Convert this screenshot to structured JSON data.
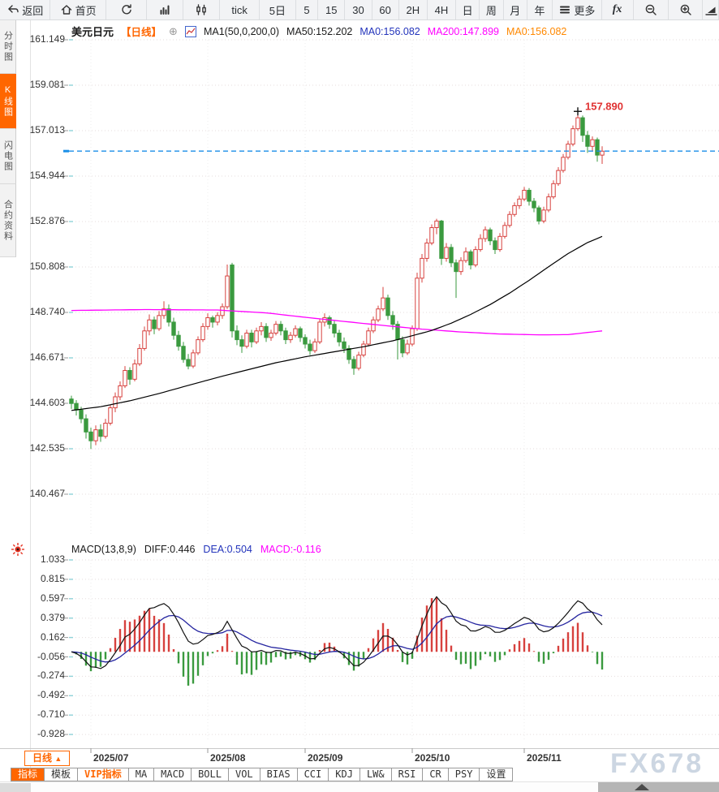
{
  "toolbar": {
    "items": [
      {
        "name": "back-button",
        "icon": "back",
        "label": "返回"
      },
      {
        "name": "home-button",
        "icon": "home",
        "label": "首页"
      },
      {
        "name": "refresh-button",
        "icon": "refresh",
        "label": ""
      },
      {
        "name": "chart-type-bar-button",
        "icon": "barchart",
        "label": ""
      },
      {
        "name": "chart-type-candle-button",
        "icon": "candles",
        "label": ""
      },
      {
        "name": "period-tick",
        "icon": "",
        "label": "tick"
      },
      {
        "name": "period-5d",
        "icon": "",
        "label": "5日"
      },
      {
        "name": "period-5",
        "icon": "",
        "label": "5"
      },
      {
        "name": "period-15",
        "icon": "",
        "label": "15"
      },
      {
        "name": "period-30",
        "icon": "",
        "label": "30"
      },
      {
        "name": "period-60",
        "icon": "",
        "label": "60"
      },
      {
        "name": "period-2h",
        "icon": "",
        "label": "2H"
      },
      {
        "name": "period-4h",
        "icon": "",
        "label": "4H"
      },
      {
        "name": "period-day",
        "icon": "",
        "label": "日"
      },
      {
        "name": "period-week",
        "icon": "",
        "label": "周"
      },
      {
        "name": "period-month",
        "icon": "",
        "label": "月"
      },
      {
        "name": "period-year",
        "icon": "",
        "label": "年"
      },
      {
        "name": "more-button",
        "icon": "menu",
        "label": "更多"
      },
      {
        "name": "indicators-fx-button",
        "icon": "fx",
        "label": "fx"
      },
      {
        "name": "zoom-out-button",
        "icon": "zoomout",
        "label": ""
      },
      {
        "name": "zoom-in-button",
        "icon": "zoomin",
        "label": ""
      },
      {
        "name": "draw-tool-button",
        "icon": "draw",
        "label": ""
      }
    ]
  },
  "sidebar": {
    "tabs": [
      {
        "label": "分时图",
        "active": false
      },
      {
        "label": "K线图",
        "active": true
      },
      {
        "label": "闪电图",
        "active": false
      },
      {
        "label": "合约资料",
        "active": false
      }
    ]
  },
  "chart_header": {
    "symbol": "美元日元",
    "period_tag": "【日线】",
    "circle_plus": "⊕",
    "ma_param": "MA1(50,0,200,0)",
    "ma50": "MA50:152.202",
    "ma0_blue": "MA0:156.082",
    "ma200": "MA200:147.899",
    "ma0_orange": "MA0:156.082"
  },
  "macd_header": {
    "title": "MACD(13,8,9)",
    "diff": "DIFF:0.446",
    "dea": "DEA:0.504",
    "macd": "MACD:-0.116"
  },
  "price_axis": [
    "161.149",
    "159.081",
    "157.013",
    "154.944",
    "152.876",
    "150.808",
    "148.740",
    "146.671",
    "144.603",
    "142.535",
    "140.467"
  ],
  "macd_axis": [
    "1.033",
    "0.815",
    "0.597",
    "0.379",
    "0.162",
    "-0.056",
    "-0.274",
    "-0.492",
    "-0.710",
    "-0.928"
  ],
  "x_axis": {
    "labels": [
      {
        "label": "2025/07",
        "i": 4
      },
      {
        "label": "2025/08",
        "i": 28
      },
      {
        "label": "2025/09",
        "i": 48
      },
      {
        "label": "2025/10",
        "i": 70
      },
      {
        "label": "2025/11",
        "i": 93
      }
    ]
  },
  "period_button": {
    "label": "日线",
    "arrow": "▲"
  },
  "bottom_tabs": [
    {
      "label": "指标",
      "state": "active"
    },
    {
      "label": "模板",
      "state": ""
    },
    {
      "label": "VIP指标",
      "state": "vip"
    },
    {
      "label": "MA",
      "state": ""
    },
    {
      "label": "MACD",
      "state": ""
    },
    {
      "label": "BOLL",
      "state": ""
    },
    {
      "label": "VOL",
      "state": ""
    },
    {
      "label": "BIAS",
      "state": ""
    },
    {
      "label": "CCI",
      "state": ""
    },
    {
      "label": "KDJ",
      "state": ""
    },
    {
      "label": "LW&",
      "state": ""
    },
    {
      "label": "RSI",
      "state": ""
    },
    {
      "label": "CR",
      "state": ""
    },
    {
      "label": "PSY",
      "state": ""
    },
    {
      "label": "设置",
      "state": ""
    }
  ],
  "watermark": "FX678",
  "colors": {
    "accent_orange": "#ff6600",
    "up": "#d7413e",
    "down": "#3a9a3f",
    "ma50": "#000000",
    "ma200": "#ff00ff",
    "diff_line": "#111111",
    "dea_line": "#2525a0",
    "current_price_line": "#1b8fe8",
    "high_label": "#e03333",
    "grid": "#e5dddd",
    "watermark": "#ccd6e2"
  },
  "chart_data": {
    "type": "candlestick",
    "symbol": "美元日元 (USD/JPY) 日线",
    "high_marker": {
      "value": 157.89,
      "label": "157.890"
    },
    "current_price": 156.082,
    "price_ticks": [
      161.149,
      159.081,
      157.013,
      154.944,
      152.876,
      150.808,
      148.74,
      146.671,
      144.603,
      142.535,
      140.467
    ],
    "macd_ticks": [
      1.033,
      0.815,
      0.597,
      0.379,
      0.162,
      -0.056,
      -0.274,
      -0.492,
      -0.71,
      -0.928
    ],
    "months": [
      {
        "label": "2025/07",
        "i": 4
      },
      {
        "label": "2025/08",
        "i": 28
      },
      {
        "label": "2025/09",
        "i": 48
      },
      {
        "label": "2025/10",
        "i": 70
      },
      {
        "label": "2025/11",
        "i": 93
      }
    ],
    "macd": {
      "fast": 8,
      "slow": 13,
      "signal": 9,
      "scale": 0.75,
      "diff": 0.446,
      "dea": 0.504,
      "hist": -0.116
    },
    "ma50_anchors": [
      [
        0,
        144.28
      ],
      [
        6,
        144.45
      ],
      [
        12,
        144.72
      ],
      [
        18,
        145.05
      ],
      [
        24,
        145.42
      ],
      [
        30,
        145.78
      ],
      [
        36,
        146.12
      ],
      [
        42,
        146.45
      ],
      [
        48,
        146.72
      ],
      [
        54,
        146.95
      ],
      [
        60,
        147.18
      ],
      [
        66,
        147.45
      ],
      [
        70,
        147.68
      ],
      [
        74,
        147.92
      ],
      [
        78,
        148.25
      ],
      [
        82,
        148.65
      ],
      [
        86,
        149.1
      ],
      [
        90,
        149.62
      ],
      [
        94,
        150.2
      ],
      [
        98,
        150.82
      ],
      [
        102,
        151.42
      ],
      [
        106,
        151.92
      ],
      [
        109,
        152.2
      ]
    ],
    "ma200_anchors": [
      [
        0,
        148.83
      ],
      [
        15,
        148.87
      ],
      [
        30,
        148.85
      ],
      [
        40,
        148.72
      ],
      [
        48,
        148.52
      ],
      [
        56,
        148.33
      ],
      [
        64,
        148.15
      ],
      [
        72,
        147.98
      ],
      [
        80,
        147.85
      ],
      [
        88,
        147.76
      ],
      [
        96,
        147.72
      ],
      [
        102,
        147.73
      ],
      [
        109,
        147.9
      ]
    ],
    "candles": [
      [
        144.8,
        144.95,
        144.35,
        144.6
      ],
      [
        144.6,
        144.75,
        144.05,
        144.3
      ],
      [
        144.3,
        144.45,
        143.7,
        143.9
      ],
      [
        143.9,
        144.1,
        143.0,
        143.3
      ],
      [
        143.3,
        143.5,
        142.53,
        142.9
      ],
      [
        142.9,
        143.6,
        142.7,
        143.4
      ],
      [
        143.4,
        143.65,
        142.85,
        143.1
      ],
      [
        143.1,
        143.9,
        143.0,
        143.7
      ],
      [
        143.7,
        144.55,
        143.6,
        144.4
      ],
      [
        144.4,
        145.1,
        144.2,
        144.9
      ],
      [
        144.9,
        145.6,
        144.75,
        145.4
      ],
      [
        145.4,
        146.3,
        145.3,
        146.1
      ],
      [
        146.1,
        146.25,
        145.45,
        145.7
      ],
      [
        145.7,
        146.6,
        145.6,
        146.4
      ],
      [
        146.4,
        147.3,
        146.3,
        147.1
      ],
      [
        147.1,
        148.1,
        147.0,
        147.9
      ],
      [
        147.9,
        148.65,
        147.7,
        148.4
      ],
      [
        148.4,
        148.55,
        147.75,
        148.0
      ],
      [
        148.0,
        148.8,
        147.9,
        148.6
      ],
      [
        148.6,
        149.25,
        148.45,
        148.9
      ],
      [
        148.9,
        149.1,
        148.1,
        148.3
      ],
      [
        148.3,
        148.5,
        147.5,
        147.7
      ],
      [
        147.7,
        147.9,
        147.0,
        147.2
      ],
      [
        147.2,
        147.4,
        146.45,
        146.6
      ],
      [
        146.6,
        146.85,
        146.15,
        146.3
      ],
      [
        146.3,
        147.05,
        146.2,
        146.9
      ],
      [
        146.9,
        147.65,
        146.8,
        147.5
      ],
      [
        147.5,
        148.25,
        147.4,
        148.1
      ],
      [
        148.1,
        148.7,
        147.95,
        148.5
      ],
      [
        148.5,
        148.6,
        148.05,
        148.3
      ],
      [
        148.3,
        148.75,
        148.15,
        148.6
      ],
      [
        148.6,
        149.15,
        148.45,
        149.0
      ],
      [
        149.0,
        150.92,
        148.9,
        150.4
      ],
      [
        150.9,
        151.0,
        147.6,
        147.9
      ],
      [
        147.9,
        148.15,
        147.25,
        147.5
      ],
      [
        147.5,
        147.7,
        146.9,
        147.2
      ],
      [
        147.2,
        147.95,
        147.1,
        147.8
      ],
      [
        147.8,
        147.95,
        147.15,
        147.4
      ],
      [
        147.4,
        148.05,
        147.3,
        147.9
      ],
      [
        147.9,
        148.3,
        147.7,
        148.1
      ],
      [
        148.1,
        148.25,
        147.4,
        147.6
      ],
      [
        147.6,
        147.95,
        147.45,
        147.8
      ],
      [
        147.8,
        148.35,
        147.7,
        148.2
      ],
      [
        148.2,
        148.35,
        147.7,
        147.9
      ],
      [
        147.9,
        148.05,
        147.3,
        147.5
      ],
      [
        147.5,
        147.85,
        147.35,
        147.7
      ],
      [
        147.7,
        148.15,
        147.6,
        148.0
      ],
      [
        148.0,
        148.1,
        147.4,
        147.6
      ],
      [
        147.6,
        147.75,
        147.1,
        147.3
      ],
      [
        147.3,
        147.5,
        146.8,
        147.0
      ],
      [
        147.0,
        147.55,
        146.9,
        147.4
      ],
      [
        147.4,
        148.45,
        147.3,
        148.3
      ],
      [
        148.3,
        148.7,
        148.1,
        148.5
      ],
      [
        148.5,
        148.6,
        148.0,
        148.2
      ],
      [
        148.2,
        148.35,
        147.6,
        147.8
      ],
      [
        147.8,
        147.95,
        147.2,
        147.4
      ],
      [
        147.4,
        147.6,
        146.9,
        147.1
      ],
      [
        147.1,
        147.25,
        146.4,
        146.6
      ],
      [
        146.6,
        146.75,
        145.9,
        146.2
      ],
      [
        146.2,
        146.95,
        146.1,
        146.8
      ],
      [
        146.8,
        147.45,
        146.7,
        147.3
      ],
      [
        147.3,
        148.05,
        147.2,
        147.9
      ],
      [
        147.9,
        148.55,
        147.8,
        148.4
      ],
      [
        148.4,
        149.05,
        148.3,
        148.9
      ],
      [
        148.9,
        149.9,
        148.8,
        149.4
      ],
      [
        149.4,
        149.55,
        148.4,
        148.6
      ],
      [
        148.6,
        148.8,
        147.95,
        148.2
      ],
      [
        148.2,
        148.35,
        146.6,
        147.5
      ],
      [
        147.5,
        147.65,
        146.7,
        146.9
      ],
      [
        146.9,
        147.5,
        146.8,
        147.3
      ],
      [
        147.3,
        148.15,
        147.2,
        148.0
      ],
      [
        148.0,
        150.55,
        147.9,
        150.3
      ],
      [
        150.3,
        151.4,
        150.1,
        151.2
      ],
      [
        151.2,
        152.1,
        151.05,
        151.9
      ],
      [
        151.9,
        152.75,
        151.8,
        152.6
      ],
      [
        152.6,
        153.0,
        152.3,
        152.9
      ],
      [
        152.9,
        152.95,
        150.9,
        151.2
      ],
      [
        151.2,
        151.9,
        151.05,
        151.7
      ],
      [
        151.7,
        151.85,
        150.8,
        151.0
      ],
      [
        151.0,
        151.15,
        149.4,
        150.6
      ],
      [
        150.6,
        151.25,
        150.45,
        151.1
      ],
      [
        151.1,
        151.7,
        151.0,
        151.5
      ],
      [
        151.5,
        151.6,
        150.7,
        150.9
      ],
      [
        150.9,
        151.75,
        150.8,
        151.6
      ],
      [
        151.6,
        152.3,
        151.5,
        152.1
      ],
      [
        152.1,
        152.65,
        151.95,
        152.5
      ],
      [
        152.5,
        152.6,
        151.8,
        152.0
      ],
      [
        152.0,
        152.15,
        151.4,
        151.6
      ],
      [
        151.6,
        152.35,
        151.5,
        152.2
      ],
      [
        152.2,
        152.85,
        152.1,
        152.7
      ],
      [
        152.7,
        153.35,
        152.6,
        153.2
      ],
      [
        153.2,
        153.75,
        153.1,
        153.6
      ],
      [
        153.6,
        154.05,
        153.45,
        153.9
      ],
      [
        153.9,
        154.45,
        153.8,
        154.3
      ],
      [
        154.3,
        154.4,
        153.6,
        153.8
      ],
      [
        153.8,
        153.95,
        153.3,
        153.5
      ],
      [
        153.5,
        153.6,
        152.75,
        152.9
      ],
      [
        152.9,
        153.55,
        152.8,
        153.4
      ],
      [
        153.4,
        154.15,
        153.3,
        154.0
      ],
      [
        154.0,
        154.75,
        153.9,
        154.6
      ],
      [
        154.6,
        155.35,
        154.5,
        155.2
      ],
      [
        155.2,
        155.95,
        155.1,
        155.8
      ],
      [
        155.8,
        156.55,
        155.7,
        156.4
      ],
      [
        156.4,
        157.25,
        156.3,
        157.1
      ],
      [
        157.1,
        157.89,
        157.0,
        157.6
      ],
      [
        157.6,
        157.7,
        156.5,
        156.8
      ],
      [
        156.8,
        157.0,
        156.0,
        156.3
      ],
      [
        156.3,
        156.75,
        156.1,
        156.6
      ],
      [
        156.6,
        156.7,
        155.6,
        155.9
      ],
      [
        155.9,
        156.3,
        155.5,
        156.08
      ]
    ]
  }
}
